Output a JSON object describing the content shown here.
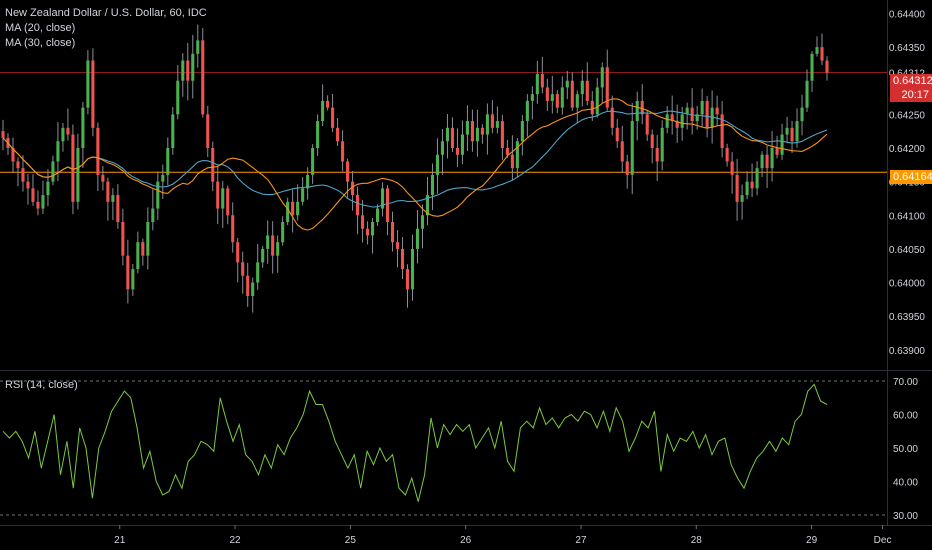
{
  "header": {
    "title": "New Zealand Dollar / U.S. Dollar, 60, IDC",
    "ma20_label": "MA (20, close)",
    "ma30_label": "MA (30, close)",
    "rsi_label": "RSI (14, close)"
  },
  "price_tags": {
    "last_price": "0.64312",
    "countdown": "20:17",
    "level_price": "0.64164"
  },
  "colors": {
    "background": "#000000",
    "up_candle": "#26a69a",
    "up_candle_green": "#4caf50",
    "down_candle": "#ef5350",
    "ma20": "#f7931a",
    "ma30": "#4fa3c7",
    "rsi_line": "#7ac943",
    "level_line": "#ff9800",
    "last_price_line": "#c62828",
    "axis_text": "#d1d4dc"
  },
  "chart_data": [
    {
      "type": "candlestick",
      "title": "New Zealand Dollar / U.S. Dollar, 60, IDC",
      "ylim": [
        0.6387,
        0.6442
      ],
      "y_ticks": [
        "0.64400",
        "0.64350",
        "0.64312",
        "0.64250",
        "0.64200",
        "0.64150",
        "0.64100",
        "0.64050",
        "0.64000",
        "0.63950",
        "0.63900"
      ],
      "x_ticks": [
        "21",
        "22",
        "25",
        "26",
        "27",
        "28",
        "29",
        "Dec"
      ],
      "horizontal_levels": [
        0.64164,
        0.64312
      ],
      "close_series": [
        0.64215,
        0.642,
        0.6418,
        0.6417,
        0.6415,
        0.6414,
        0.6412,
        0.6411,
        0.6413,
        0.6415,
        0.6418,
        0.6421,
        0.6423,
        0.6422,
        0.6412,
        0.642,
        0.6426,
        0.6433,
        0.6423,
        0.6416,
        0.6415,
        0.6412,
        0.6413,
        0.6409,
        0.6404,
        0.6399,
        0.6402,
        0.6406,
        0.6404,
        0.6409,
        0.6411,
        0.6415,
        0.6416,
        0.642,
        0.6425,
        0.643,
        0.6433,
        0.643,
        0.6434,
        0.6436,
        0.6425,
        0.642,
        0.6415,
        0.6411,
        0.6414,
        0.641,
        0.6406,
        0.6403,
        0.6401,
        0.6398,
        0.64,
        0.6403,
        0.6405,
        0.6407,
        0.6404,
        0.6406,
        0.6409,
        0.6412,
        0.641,
        0.6412,
        0.6414,
        0.6416,
        0.642,
        0.6424,
        0.6427,
        0.6426,
        0.6423,
        0.6421,
        0.6418,
        0.6415,
        0.6413,
        0.641,
        0.6408,
        0.6407,
        0.6409,
        0.6411,
        0.6414,
        0.6409,
        0.6406,
        0.6405,
        0.6402,
        0.6399,
        0.6405,
        0.6408,
        0.641,
        0.6413,
        0.6416,
        0.6419,
        0.6421,
        0.6423,
        0.642,
        0.6419,
        0.6422,
        0.6424,
        0.6421,
        0.6423,
        0.6422,
        0.6425,
        0.6423,
        0.6424,
        0.642,
        0.6419,
        0.6417,
        0.6421,
        0.6424,
        0.6427,
        0.6428,
        0.6431,
        0.6429,
        0.6427,
        0.6428,
        0.6426,
        0.6429,
        0.643,
        0.6426,
        0.6428,
        0.643,
        0.6427,
        0.6425,
        0.6429,
        0.6432,
        0.6426,
        0.6423,
        0.6421,
        0.6418,
        0.6416,
        0.6424,
        0.6427,
        0.6425,
        0.6422,
        0.642,
        0.6418,
        0.6423,
        0.6425,
        0.6424,
        0.6423,
        0.6425,
        0.6426,
        0.6424,
        0.6425,
        0.6427,
        0.6423,
        0.6426,
        0.6425,
        0.642,
        0.6418,
        0.6416,
        0.6412,
        0.6413,
        0.6415,
        0.6414,
        0.6417,
        0.6419,
        0.6417,
        0.642,
        0.6419,
        0.6422,
        0.6423,
        0.6421,
        0.6424,
        0.6426,
        0.643,
        0.6434,
        0.6435,
        0.6433,
        0.64312
      ]
    },
    {
      "type": "line",
      "title": "RSI (14, close)",
      "ylim": [
        27,
        73
      ],
      "y_ticks": [
        "70.00",
        "60.00",
        "50.00",
        "40.00",
        "30.00"
      ],
      "reference_lines": [
        70,
        30
      ],
      "series": [
        {
          "name": "RSI (14, close)",
          "values": [
            55,
            53,
            55,
            52,
            47,
            55,
            44,
            52,
            60,
            42,
            52,
            38,
            56,
            50,
            35,
            50,
            55,
            61,
            64,
            67,
            65,
            56,
            44,
            49,
            40,
            36,
            37,
            42,
            38,
            46,
            48,
            52,
            51,
            49,
            65,
            58,
            52,
            57,
            48,
            46,
            42,
            48,
            44,
            51,
            48,
            53,
            56,
            60,
            67,
            63,
            63,
            58,
            52,
            48,
            44,
            48,
            38,
            49,
            45,
            50,
            46,
            48,
            38,
            36,
            41,
            34,
            42,
            59,
            50,
            57,
            54,
            57,
            55,
            57,
            50,
            53,
            56,
            50,
            58,
            46,
            43,
            56,
            58,
            56,
            62,
            57,
            59,
            56,
            59,
            60,
            58,
            61,
            60,
            56,
            61,
            55,
            62,
            58,
            49,
            53,
            58,
            56,
            61,
            43,
            54,
            49,
            53,
            52,
            55,
            50,
            54,
            48,
            52,
            53,
            45,
            41,
            38,
            43,
            47,
            49,
            52,
            49,
            53,
            51,
            58,
            60,
            67,
            69,
            64,
            63
          ]
        }
      ]
    }
  ]
}
